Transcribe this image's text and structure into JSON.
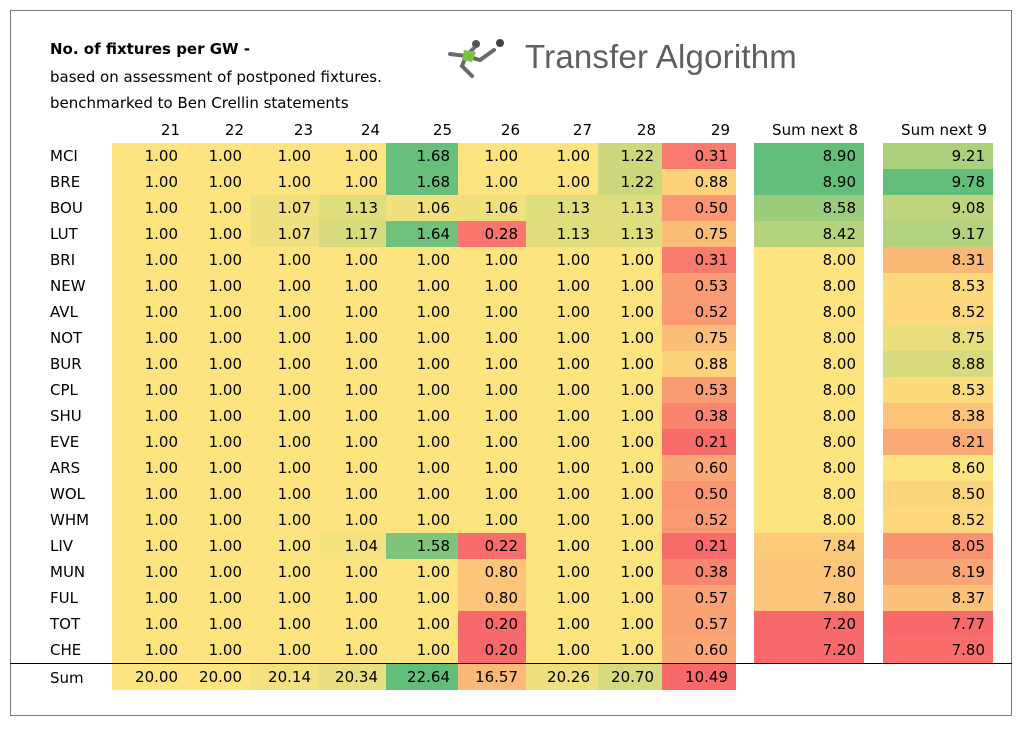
{
  "title": "No. of fixtures per GW -",
  "subtitle1": "based on assessment of postponed fixtures.",
  "subtitle2": "benchmarked to Ben Crellin statements",
  "brand": "Transfer Algorithm",
  "logo_icon": "footballer-kicking-ball-icon",
  "headers": [
    "21",
    "22",
    "23",
    "24",
    "25",
    "26",
    "27",
    "28",
    "29",
    "Sum next 8",
    "Sum next 9"
  ],
  "rows": [
    {
      "team": "MCI",
      "vals": [
        "1.00",
        "1.00",
        "1.00",
        "1.00",
        "1.68",
        "1.00",
        "1.00",
        "1.22",
        "0.31",
        "8.90",
        "9.21"
      ]
    },
    {
      "team": "BRE",
      "vals": [
        "1.00",
        "1.00",
        "1.00",
        "1.00",
        "1.68",
        "1.00",
        "1.00",
        "1.22",
        "0.88",
        "8.90",
        "9.78"
      ]
    },
    {
      "team": "BOU",
      "vals": [
        "1.00",
        "1.00",
        "1.07",
        "1.13",
        "1.06",
        "1.06",
        "1.13",
        "1.13",
        "0.50",
        "8.58",
        "9.08"
      ]
    },
    {
      "team": "LUT",
      "vals": [
        "1.00",
        "1.00",
        "1.07",
        "1.17",
        "1.64",
        "0.28",
        "1.13",
        "1.13",
        "0.75",
        "8.42",
        "9.17"
      ]
    },
    {
      "team": "BRI",
      "vals": [
        "1.00",
        "1.00",
        "1.00",
        "1.00",
        "1.00",
        "1.00",
        "1.00",
        "1.00",
        "0.31",
        "8.00",
        "8.31"
      ]
    },
    {
      "team": "NEW",
      "vals": [
        "1.00",
        "1.00",
        "1.00",
        "1.00",
        "1.00",
        "1.00",
        "1.00",
        "1.00",
        "0.53",
        "8.00",
        "8.53"
      ]
    },
    {
      "team": "AVL",
      "vals": [
        "1.00",
        "1.00",
        "1.00",
        "1.00",
        "1.00",
        "1.00",
        "1.00",
        "1.00",
        "0.52",
        "8.00",
        "8.52"
      ]
    },
    {
      "team": "NOT",
      "vals": [
        "1.00",
        "1.00",
        "1.00",
        "1.00",
        "1.00",
        "1.00",
        "1.00",
        "1.00",
        "0.75",
        "8.00",
        "8.75"
      ]
    },
    {
      "team": "BUR",
      "vals": [
        "1.00",
        "1.00",
        "1.00",
        "1.00",
        "1.00",
        "1.00",
        "1.00",
        "1.00",
        "0.88",
        "8.00",
        "8.88"
      ]
    },
    {
      "team": "CPL",
      "vals": [
        "1.00",
        "1.00",
        "1.00",
        "1.00",
        "1.00",
        "1.00",
        "1.00",
        "1.00",
        "0.53",
        "8.00",
        "8.53"
      ]
    },
    {
      "team": "SHU",
      "vals": [
        "1.00",
        "1.00",
        "1.00",
        "1.00",
        "1.00",
        "1.00",
        "1.00",
        "1.00",
        "0.38",
        "8.00",
        "8.38"
      ]
    },
    {
      "team": "EVE",
      "vals": [
        "1.00",
        "1.00",
        "1.00",
        "1.00",
        "1.00",
        "1.00",
        "1.00",
        "1.00",
        "0.21",
        "8.00",
        "8.21"
      ]
    },
    {
      "team": "ARS",
      "vals": [
        "1.00",
        "1.00",
        "1.00",
        "1.00",
        "1.00",
        "1.00",
        "1.00",
        "1.00",
        "0.60",
        "8.00",
        "8.60"
      ]
    },
    {
      "team": "WOL",
      "vals": [
        "1.00",
        "1.00",
        "1.00",
        "1.00",
        "1.00",
        "1.00",
        "1.00",
        "1.00",
        "0.50",
        "8.00",
        "8.50"
      ]
    },
    {
      "team": "WHM",
      "vals": [
        "1.00",
        "1.00",
        "1.00",
        "1.00",
        "1.00",
        "1.00",
        "1.00",
        "1.00",
        "0.52",
        "8.00",
        "8.52"
      ]
    },
    {
      "team": "LIV",
      "vals": [
        "1.00",
        "1.00",
        "1.00",
        "1.04",
        "1.58",
        "0.22",
        "1.00",
        "1.00",
        "0.21",
        "7.84",
        "8.05"
      ]
    },
    {
      "team": "MUN",
      "vals": [
        "1.00",
        "1.00",
        "1.00",
        "1.00",
        "1.00",
        "0.80",
        "1.00",
        "1.00",
        "0.38",
        "7.80",
        "8.19"
      ]
    },
    {
      "team": "FUL",
      "vals": [
        "1.00",
        "1.00",
        "1.00",
        "1.00",
        "1.00",
        "0.80",
        "1.00",
        "1.00",
        "0.57",
        "7.80",
        "8.37"
      ]
    },
    {
      "team": "TOT",
      "vals": [
        "1.00",
        "1.00",
        "1.00",
        "1.00",
        "1.00",
        "0.20",
        "1.00",
        "1.00",
        "0.57",
        "7.20",
        "7.77"
      ]
    },
    {
      "team": "CHE",
      "vals": [
        "1.00",
        "1.00",
        "1.00",
        "1.00",
        "1.00",
        "0.20",
        "1.00",
        "1.00",
        "0.60",
        "7.20",
        "7.80"
      ]
    }
  ],
  "sum_row": {
    "label": "Sum",
    "vals": [
      "20.00",
      "20.00",
      "20.14",
      "20.34",
      "22.64",
      "16.57",
      "20.26",
      "20.70",
      "10.49"
    ]
  },
  "colors": {
    "neutral": "#fde47e",
    "frame": "#7a7a7a",
    "gw_scale": {
      "low": "#f8696b",
      "mid": "#fde47e",
      "high": "#63be7b"
    },
    "sum8_scale": {
      "low": "#f8696b",
      "mid": "#fde47e",
      "high": "#63be7b"
    },
    "sum9_scale": {
      "low": "#f8696b",
      "mid": "#fde47e",
      "high": "#63be7b"
    }
  },
  "scale_points": {
    "gw": [
      0.2,
      1.0,
      1.7
    ],
    "sum8": [
      7.2,
      8.0,
      8.9
    ],
    "sum9": [
      7.77,
      8.6,
      9.78
    ],
    "sumrow": [
      10.49,
      20.0,
      22.64
    ]
  }
}
